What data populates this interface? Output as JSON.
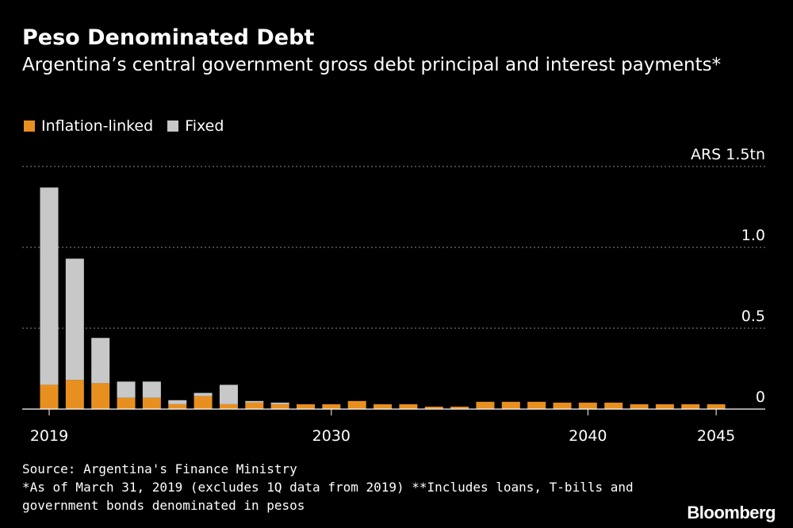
{
  "chart_data": {
    "type": "bar",
    "stacked": true,
    "title": "Peso Denominated Debt",
    "subtitle": "Argentina’s central government gross debt principal and interest payments*",
    "units_label": "ARS 1.5tn",
    "ylim": [
      0,
      1.5
    ],
    "yticks": [
      {
        "value": 0,
        "label": "0"
      },
      {
        "value": 0.5,
        "label": "0.5"
      },
      {
        "value": 1.0,
        "label": "1.0"
      },
      {
        "value": 1.5,
        "label": "ARS 1.5tn"
      }
    ],
    "xticks": [
      {
        "value": 2019,
        "label": "2019"
      },
      {
        "value": 2030,
        "label": "2030"
      },
      {
        "value": 2040,
        "label": "2040"
      },
      {
        "value": 2045,
        "label": "2045"
      }
    ],
    "categories": [
      2019,
      2020,
      2021,
      2022,
      2023,
      2024,
      2025,
      2026,
      2027,
      2028,
      2029,
      2030,
      2031,
      2032,
      2033,
      2034,
      2035,
      2036,
      2037,
      2038,
      2039,
      2040,
      2041,
      2042,
      2043,
      2044,
      2045
    ],
    "series": [
      {
        "name": "Inflation-linked",
        "color": "#E8901F",
        "values": [
          0.15,
          0.18,
          0.16,
          0.07,
          0.07,
          0.03,
          0.08,
          0.03,
          0.04,
          0.03,
          0.03,
          0.03,
          0.05,
          0.03,
          0.03,
          0.015,
          0.015,
          0.045,
          0.045,
          0.045,
          0.04,
          0.04,
          0.04,
          0.03,
          0.03,
          0.03,
          0.03
        ]
      },
      {
        "name": "Fixed",
        "color": "#C8C8C8",
        "values": [
          1.22,
          0.75,
          0.28,
          0.1,
          0.1,
          0.025,
          0.02,
          0.12,
          0.01,
          0.01,
          0,
          0,
          0,
          0,
          0,
          0,
          0,
          0,
          0,
          0,
          0,
          0,
          0,
          0,
          0,
          0,
          0
        ]
      }
    ]
  },
  "legend": {
    "inflation_label": "Inflation-linked",
    "fixed_label": "Fixed",
    "inflation_color": "#E8901F",
    "fixed_color": "#C8C8C8"
  },
  "footer": {
    "source": "Source: Argentina's Finance Ministry",
    "note1": "*As of March 31, 2019 (excludes 1Q data from 2019) **Includes loans, T-bills and",
    "note2": "government bonds denominated in pesos"
  },
  "brand": "Bloomberg"
}
